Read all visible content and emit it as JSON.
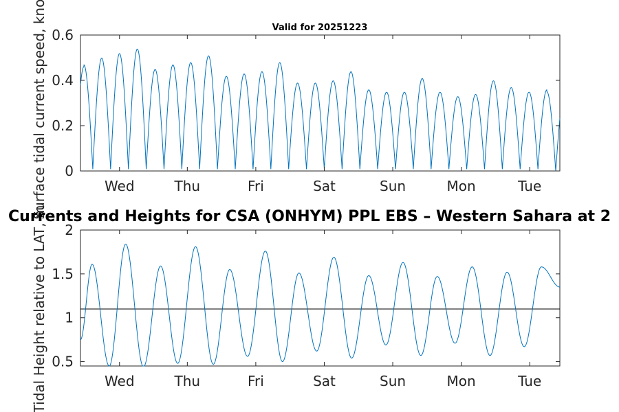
{
  "chart_data": [
    {
      "type": "line",
      "title": "Valid for 20251223",
      "xlabel": "",
      "ylabel": "Surface tidal current speed, knots",
      "ylim": [
        0,
        0.6
      ],
      "yticks": [
        "0",
        "0.2",
        "0.4",
        "0.6"
      ],
      "xticks": [
        "Wed",
        "Thu",
        "Fri",
        "Sat",
        "Sun",
        "Mon",
        "Tue"
      ],
      "grid": false,
      "color": "#0072bd",
      "series": [
        {
          "name": "current speed",
          "x_days": [
            0.05,
            0.31,
            0.57,
            0.83,
            1.09,
            1.35,
            1.61,
            1.87,
            2.13,
            2.39,
            2.65,
            2.91,
            3.17,
            3.43,
            3.69,
            3.95,
            4.21,
            4.47,
            4.73,
            4.99,
            5.25,
            5.51,
            5.77,
            6.03,
            6.29,
            6.55,
            6.81
          ],
          "peaks": [
            0.46,
            0.49,
            0.51,
            0.53,
            0.44,
            0.46,
            0.47,
            0.5,
            0.41,
            0.42,
            0.43,
            0.47,
            0.38,
            0.38,
            0.39,
            0.43,
            0.35,
            0.34,
            0.34,
            0.4,
            0.34,
            0.32,
            0.33,
            0.39,
            0.36,
            0.34,
            0.35
          ]
        }
      ]
    },
    {
      "type": "line",
      "title": "Currents and Heights for CSA (ONHYM) PPL EBS  – Western Sahara at 2",
      "xlabel": "",
      "ylabel": "Tidal Height relative to LAT, m",
      "ylim": [
        0.45,
        2
      ],
      "yticks": [
        "0.5",
        "1",
        "1.5",
        "2"
      ],
      "xticks": [
        "Wed",
        "Thu",
        "Fri",
        "Sat",
        "Sun",
        "Mon",
        "Tue"
      ],
      "grid": false,
      "reference_line": 1.1,
      "color": "#0072bd",
      "series": [
        {
          "name": "tidal height",
          "x_days": [
            0.0,
            0.17,
            0.42,
            0.66,
            0.92,
            1.17,
            1.42,
            1.68,
            1.94,
            2.18,
            2.44,
            2.7,
            2.95,
            3.19,
            3.45,
            3.7,
            3.96,
            4.21,
            4.46,
            4.71,
            4.97,
            5.21,
            5.47,
            5.72,
            5.98,
            6.23,
            6.48,
            6.73,
            7.0
          ],
          "values": [
            0.75,
            1.61,
            0.45,
            1.84,
            0.44,
            1.59,
            0.48,
            1.81,
            0.47,
            1.55,
            0.56,
            1.76,
            0.5,
            1.51,
            0.62,
            1.69,
            0.54,
            1.48,
            0.69,
            1.63,
            0.57,
            1.47,
            0.71,
            1.58,
            0.57,
            1.52,
            0.67,
            1.58,
            1.35
          ]
        }
      ]
    }
  ]
}
